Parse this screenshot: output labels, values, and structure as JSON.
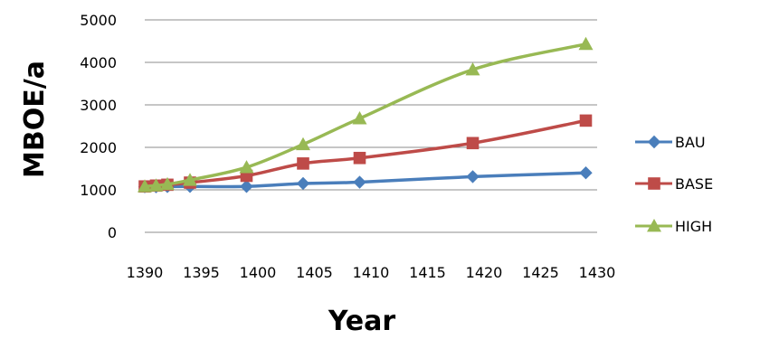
{
  "chart_data": {
    "type": "line",
    "title": "",
    "xlabel": "Year",
    "ylabel": "MBOE/a",
    "xlim": [
      1390,
      1430
    ],
    "ylim": [
      0,
      5000
    ],
    "x_ticks": [
      1390,
      1395,
      1400,
      1405,
      1410,
      1415,
      1420,
      1425,
      1430
    ],
    "y_ticks": [
      0,
      1000,
      2000,
      3000,
      4000,
      5000
    ],
    "grid": "horizontal",
    "legend_position": "right",
    "series": [
      {
        "name": "BAU",
        "color": "#4a7ebb",
        "marker": "diamond",
        "points": [
          [
            1390,
            1070
          ],
          [
            1391,
            1070
          ],
          [
            1392,
            1075
          ],
          [
            1394,
            1080
          ],
          [
            1399,
            1080
          ],
          [
            1404,
            1150
          ],
          [
            1409,
            1180
          ],
          [
            1419,
            1310
          ],
          [
            1429,
            1400
          ]
        ]
      },
      {
        "name": "BASE",
        "color": "#be4b48",
        "marker": "square",
        "points": [
          [
            1390,
            1080
          ],
          [
            1391,
            1100
          ],
          [
            1392,
            1120
          ],
          [
            1394,
            1170
          ],
          [
            1399,
            1330
          ],
          [
            1404,
            1620
          ],
          [
            1409,
            1750
          ],
          [
            1419,
            2100
          ],
          [
            1429,
            2630
          ]
        ]
      },
      {
        "name": "HIGH",
        "color": "#98b954",
        "marker": "triangle",
        "points": [
          [
            1390,
            1080
          ],
          [
            1391,
            1100
          ],
          [
            1392,
            1130
          ],
          [
            1394,
            1230
          ],
          [
            1399,
            1530
          ],
          [
            1404,
            2070
          ],
          [
            1409,
            2680
          ],
          [
            1419,
            3830
          ],
          [
            1429,
            4430
          ]
        ]
      }
    ]
  }
}
